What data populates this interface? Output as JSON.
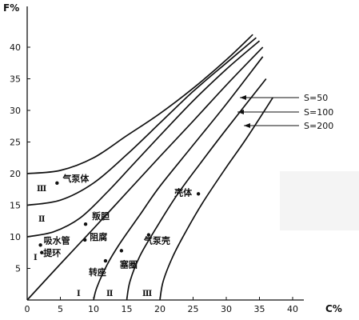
{
  "chart_data": {
    "type": "line",
    "xlabel": "C%",
    "ylabel": "F%",
    "xlim": [
      0,
      42
    ],
    "ylim": [
      0,
      43
    ],
    "x_ticks": [
      0,
      5,
      10,
      15,
      20,
      25,
      30,
      35,
      40
    ],
    "y_ticks": [
      5,
      10,
      15,
      20,
      25,
      30,
      35,
      40
    ],
    "grid": false,
    "series": [
      {
        "points": [
          [
            0,
            20
          ],
          [
            5,
            20.5
          ],
          [
            10,
            22.5
          ],
          [
            15,
            26
          ],
          [
            20,
            29.5
          ],
          [
            25,
            33.5
          ],
          [
            30,
            38
          ],
          [
            34,
            42
          ]
        ]
      },
      {
        "points": [
          [
            0,
            15
          ],
          [
            5,
            15.8
          ],
          [
            10,
            18.5
          ],
          [
            15,
            23
          ],
          [
            20,
            28
          ],
          [
            25,
            33
          ],
          [
            30,
            37.5
          ],
          [
            34.5,
            41.5
          ]
        ]
      },
      {
        "points": [
          [
            0,
            10
          ],
          [
            4,
            10.8
          ],
          [
            8,
            13
          ],
          [
            12,
            17
          ],
          [
            16,
            21.5
          ],
          [
            20,
            26
          ],
          [
            25,
            31.5
          ],
          [
            30,
            36.5
          ],
          [
            35,
            41
          ]
        ]
      },
      {
        "points": [
          [
            0,
            0
          ],
          [
            5,
            5.7
          ],
          [
            10,
            11.3
          ],
          [
            15,
            17
          ],
          [
            20,
            22.7
          ],
          [
            25,
            28.3
          ],
          [
            30,
            34
          ],
          [
            35.5,
            40
          ]
        ]
      },
      {
        "points": [
          [
            10,
            0
          ],
          [
            10.5,
            2
          ],
          [
            12,
            5.5
          ],
          [
            14,
            9
          ],
          [
            17,
            13.5
          ],
          [
            20,
            18
          ],
          [
            25,
            24.5
          ],
          [
            30,
            31
          ],
          [
            35.5,
            38.5
          ]
        ]
      },
      {
        "points": [
          [
            15,
            0
          ],
          [
            15.5,
            3
          ],
          [
            17,
            7
          ],
          [
            19.5,
            11.5
          ],
          [
            22.5,
            16.5
          ],
          [
            26,
            21.5
          ],
          [
            30,
            27
          ],
          [
            36,
            35
          ]
        ]
      },
      {
        "points": [
          [
            20,
            0
          ],
          [
            20.5,
            3
          ],
          [
            22,
            7
          ],
          [
            24,
            11
          ],
          [
            26.5,
            15.5
          ],
          [
            30,
            21
          ],
          [
            33,
            25.5
          ],
          [
            37,
            32
          ]
        ]
      }
    ],
    "legend": [
      "S=50",
      "S=100",
      "S=200"
    ],
    "zones": [
      "Ⅲ",
      "Ⅱ",
      "Ⅰ",
      "Ⅰ",
      "Ⅱ",
      "Ⅲ"
    ],
    "annotations": [
      {
        "text": "气泵体",
        "x": 4.5,
        "y": 18.5
      },
      {
        "text": "叛胆",
        "x": 8.8,
        "y": 12
      },
      {
        "text": "壳体",
        "x": 25.8,
        "y": 16.8
      },
      {
        "text": "吸水管",
        "x": 2,
        "y": 8.7
      },
      {
        "text": "阻腐",
        "x": 8.7,
        "y": 9.5
      },
      {
        "text": "气泵壳",
        "x": 18.3,
        "y": 10.3
      },
      {
        "text": "提环",
        "x": 2.2,
        "y": 7.5
      },
      {
        "text": "转座",
        "x": 11.8,
        "y": 6.2
      },
      {
        "text": "塞圈",
        "x": 14.2,
        "y": 7.8
      }
    ]
  }
}
